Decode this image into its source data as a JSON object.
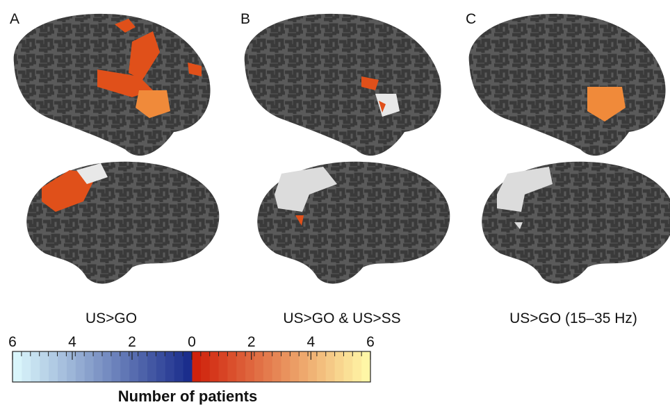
{
  "panels": [
    {
      "label": "A",
      "caption": "US>GO"
    },
    {
      "label": "B",
      "caption": "US>GO & US>SS"
    },
    {
      "label": "C",
      "caption": "US>GO (15–35 Hz)"
    }
  ],
  "colorbar": {
    "title": "Number of patients",
    "lim": [
      0,
      6
    ],
    "blue_ticks": [
      6,
      4,
      2
    ],
    "red_ticks": [
      0,
      2,
      4,
      6
    ],
    "blue_colors": [
      "#1b2d8c",
      "#d9f5fb"
    ],
    "red_colors": [
      "#d0220c",
      "#fff6a6"
    ]
  }
}
